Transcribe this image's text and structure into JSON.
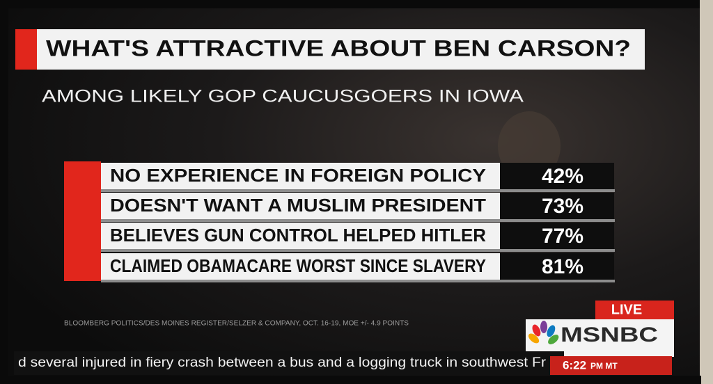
{
  "header": {
    "title": "WHAT'S ATTRACTIVE ABOUT BEN CARSON?",
    "subtitle": "AMONG LIKELY GOP CAUCUSGOERS IN IOWA"
  },
  "table": {
    "rows": [
      [
        "NO EXPERIENCE IN FOREIGN POLICY",
        "42%"
      ],
      [
        "DOESN'T WANT A MUSLIM PRESIDENT",
        "73%"
      ],
      [
        "BELIEVES GUN CONTROL HELPED HITLER",
        "77%"
      ],
      [
        "CLAIMED OBAMACARE WORST SINCE SLAVERY",
        "81%"
      ]
    ]
  },
  "source": "BLOOMBERG POLITICS/DES MOINES REGISTER/SELZER & COMPANY, OCT. 16-19, MOE +/- 4.9 POINTS",
  "bug": {
    "live": "LIVE",
    "network": "MSNBC"
  },
  "ticker": {
    "text": "d several injured in fiery crash between a bus and a logging truck in southwest Fr",
    "time": "6:22",
    "zone": "PM MT"
  }
}
